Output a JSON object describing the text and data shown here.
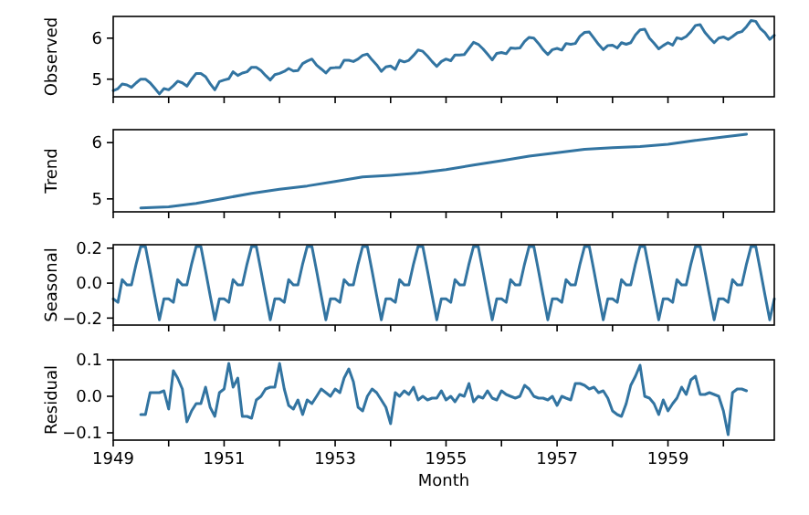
{
  "chart_data": [
    {
      "type": "line",
      "ylabel": "Observed",
      "xlim": [
        "1949-01",
        "1960-12"
      ],
      "ylim": [
        4.57,
        6.53
      ],
      "yticks": [
        {
          "value": 5,
          "label": "5"
        },
        {
          "value": 6,
          "label": "6"
        }
      ],
      "tick_labels": "y",
      "xticks": [
        {
          "value": "1949",
          "label": null
        },
        {
          "value": "1950",
          "label": null
        },
        {
          "value": "1951",
          "label": null
        },
        {
          "value": "1952",
          "label": null
        },
        {
          "value": "1953",
          "label": null
        },
        {
          "value": "1954",
          "label": null
        },
        {
          "value": "1955",
          "label": null
        },
        {
          "value": "1956",
          "label": null
        },
        {
          "value": "1957",
          "label": null
        },
        {
          "value": "1958",
          "label": null
        },
        {
          "value": "1959",
          "label": null
        },
        {
          "value": "1960",
          "label": null
        }
      ],
      "x": [
        "1949-01",
        "1949-02",
        "1949-03",
        "1949-04",
        "1949-05",
        "1949-06",
        "1949-07",
        "1949-08",
        "1949-09",
        "1949-10",
        "1949-11",
        "1949-12",
        "1950-01",
        "1950-02",
        "1950-03",
        "1950-04",
        "1950-05",
        "1950-06",
        "1950-07",
        "1950-08",
        "1950-09",
        "1950-10",
        "1950-11",
        "1950-12",
        "1951-01",
        "1951-02",
        "1951-03",
        "1951-04",
        "1951-05",
        "1951-06",
        "1951-07",
        "1951-08",
        "1951-09",
        "1951-10",
        "1951-11",
        "1951-12",
        "1952-01",
        "1952-02",
        "1952-03",
        "1952-04",
        "1952-05",
        "1952-06",
        "1952-07",
        "1952-08",
        "1952-09",
        "1952-10",
        "1952-11",
        "1952-12",
        "1953-01",
        "1953-02",
        "1953-03",
        "1953-04",
        "1953-05",
        "1953-06",
        "1953-07",
        "1953-08",
        "1953-09",
        "1953-10",
        "1953-11",
        "1953-12",
        "1954-01",
        "1954-02",
        "1954-03",
        "1954-04",
        "1954-05",
        "1954-06",
        "1954-07",
        "1954-08",
        "1954-09",
        "1954-10",
        "1954-11",
        "1954-12",
        "1955-01",
        "1955-02",
        "1955-03",
        "1955-04",
        "1955-05",
        "1955-06",
        "1955-07",
        "1955-08",
        "1955-09",
        "1955-10",
        "1955-11",
        "1955-12",
        "1956-01",
        "1956-02",
        "1956-03",
        "1956-04",
        "1956-05",
        "1956-06",
        "1956-07",
        "1956-08",
        "1956-09",
        "1956-10",
        "1956-11",
        "1956-12",
        "1957-01",
        "1957-02",
        "1957-03",
        "1957-04",
        "1957-05",
        "1957-06",
        "1957-07",
        "1957-08",
        "1957-09",
        "1957-10",
        "1957-11",
        "1957-12",
        "1958-01",
        "1958-02",
        "1958-03",
        "1958-04",
        "1958-05",
        "1958-06",
        "1958-07",
        "1958-08",
        "1958-09",
        "1958-10",
        "1958-11",
        "1958-12",
        "1959-01",
        "1959-02",
        "1959-03",
        "1959-04",
        "1959-05",
        "1959-06",
        "1959-07",
        "1959-08",
        "1959-09",
        "1959-10",
        "1959-11",
        "1959-12",
        "1960-01",
        "1960-02",
        "1960-03",
        "1960-04",
        "1960-05",
        "1960-06",
        "1960-07",
        "1960-08",
        "1960-09",
        "1960-10",
        "1960-11",
        "1960-12"
      ],
      "series": [
        {
          "color": "#3274a1",
          "values": [
            4.72,
            4.77,
            4.88,
            4.86,
            4.8,
            4.91,
            5.0,
            5.0,
            4.91,
            4.78,
            4.64,
            4.77,
            4.74,
            4.84,
            4.95,
            4.91,
            4.83,
            5.0,
            5.14,
            5.14,
            5.06,
            4.89,
            4.74,
            4.94,
            4.98,
            5.01,
            5.18,
            5.09,
            5.15,
            5.18,
            5.29,
            5.29,
            5.21,
            5.09,
            4.98,
            5.11,
            5.14,
            5.19,
            5.26,
            5.2,
            5.21,
            5.38,
            5.44,
            5.49,
            5.34,
            5.25,
            5.15,
            5.27,
            5.28,
            5.28,
            5.46,
            5.46,
            5.43,
            5.49,
            5.58,
            5.61,
            5.47,
            5.35,
            5.19,
            5.3,
            5.32,
            5.24,
            5.46,
            5.42,
            5.46,
            5.58,
            5.71,
            5.68,
            5.56,
            5.43,
            5.31,
            5.43,
            5.49,
            5.45,
            5.59,
            5.59,
            5.6,
            5.75,
            5.9,
            5.85,
            5.74,
            5.61,
            5.47,
            5.63,
            5.65,
            5.62,
            5.76,
            5.75,
            5.76,
            5.92,
            6.02,
            6.0,
            5.87,
            5.72,
            5.6,
            5.72,
            5.75,
            5.71,
            5.87,
            5.85,
            5.87,
            6.05,
            6.14,
            6.15,
            6.0,
            5.85,
            5.72,
            5.82,
            5.83,
            5.76,
            5.89,
            5.85,
            5.89,
            6.08,
            6.2,
            6.22,
            6.0,
            5.88,
            5.74,
            5.82,
            5.89,
            5.83,
            6.01,
            5.98,
            6.04,
            6.16,
            6.31,
            6.33,
            6.14,
            6.01,
            5.89,
            6.0,
            6.03,
            5.97,
            6.04,
            6.13,
            6.16,
            6.28,
            6.43,
            6.41,
            6.23,
            6.13,
            5.97,
            6.07
          ]
        }
      ]
    },
    {
      "type": "line",
      "ylabel": "Trend",
      "xlim": [
        "1949-01",
        "1960-12"
      ],
      "ylim": [
        4.77,
        6.23
      ],
      "yticks": [
        {
          "value": 5,
          "label": "5"
        },
        {
          "value": 6,
          "label": "6"
        }
      ],
      "tick_labels": "y",
      "xticks": [
        {
          "value": "1949",
          "label": null
        },
        {
          "value": "1950",
          "label": null
        },
        {
          "value": "1951",
          "label": null
        },
        {
          "value": "1952",
          "label": null
        },
        {
          "value": "1953",
          "label": null
        },
        {
          "value": "1954",
          "label": null
        },
        {
          "value": "1955",
          "label": null
        },
        {
          "value": "1956",
          "label": null
        },
        {
          "value": "1957",
          "label": null
        },
        {
          "value": "1958",
          "label": null
        },
        {
          "value": "1959",
          "label": null
        },
        {
          "value": "1960",
          "label": null
        }
      ],
      "x": [
        "1949-07",
        "1950-01",
        "1950-07",
        "1951-01",
        "1951-07",
        "1952-01",
        "1952-07",
        "1953-01",
        "1953-07",
        "1954-01",
        "1954-07",
        "1955-01",
        "1955-07",
        "1956-01",
        "1956-07",
        "1957-01",
        "1957-07",
        "1958-01",
        "1958-07",
        "1959-01",
        "1959-07",
        "1960-01",
        "1960-06"
      ],
      "series": [
        {
          "color": "#3274a1",
          "values": [
            4.84,
            4.86,
            4.92,
            5.01,
            5.1,
            5.17,
            5.23,
            5.31,
            5.39,
            5.42,
            5.46,
            5.52,
            5.6,
            5.68,
            5.76,
            5.82,
            5.88,
            5.91,
            5.93,
            5.97,
            6.04,
            6.1,
            6.15
          ]
        }
      ]
    },
    {
      "type": "line",
      "ylabel": "Seasonal",
      "xlim": [
        "1949-01",
        "1960-12"
      ],
      "ylim": [
        -0.24,
        0.22
      ],
      "yticks": [
        {
          "value": -0.2,
          "label": "−0.2"
        },
        {
          "value": 0,
          "label": "0.0"
        },
        {
          "value": 0.2,
          "label": "0.2"
        }
      ],
      "tick_labels": "y",
      "xticks": [
        {
          "value": "1949",
          "label": null
        },
        {
          "value": "1950",
          "label": null
        },
        {
          "value": "1951",
          "label": null
        },
        {
          "value": "1952",
          "label": null
        },
        {
          "value": "1953",
          "label": null
        },
        {
          "value": "1954",
          "label": null
        },
        {
          "value": "1955",
          "label": null
        },
        {
          "value": "1956",
          "label": null
        },
        {
          "value": "1957",
          "label": null
        },
        {
          "value": "1958",
          "label": null
        },
        {
          "value": "1959",
          "label": null
        },
        {
          "value": "1960",
          "label": null
        }
      ],
      "x": [
        "1949-01",
        "1949-02",
        "1949-03",
        "1949-04",
        "1949-05",
        "1949-06",
        "1949-07",
        "1949-08",
        "1949-09",
        "1949-10",
        "1949-11",
        "1949-12",
        "1950-01",
        "1950-02",
        "1950-03",
        "1950-04",
        "1950-05",
        "1950-06",
        "1950-07",
        "1950-08",
        "1950-09",
        "1950-10",
        "1950-11",
        "1950-12",
        "1951-01",
        "1951-02",
        "1951-03",
        "1951-04",
        "1951-05",
        "1951-06",
        "1951-07",
        "1951-08",
        "1951-09",
        "1951-10",
        "1951-11",
        "1951-12",
        "1952-01",
        "1952-02",
        "1952-03",
        "1952-04",
        "1952-05",
        "1952-06",
        "1952-07",
        "1952-08",
        "1952-09",
        "1952-10",
        "1952-11",
        "1952-12",
        "1953-01",
        "1953-02",
        "1953-03",
        "1953-04",
        "1953-05",
        "1953-06",
        "1953-07",
        "1953-08",
        "1953-09",
        "1953-10",
        "1953-11",
        "1953-12",
        "1954-01",
        "1954-02",
        "1954-03",
        "1954-04",
        "1954-05",
        "1954-06",
        "1954-07",
        "1954-08",
        "1954-09",
        "1954-10",
        "1954-11",
        "1954-12",
        "1955-01",
        "1955-02",
        "1955-03",
        "1955-04",
        "1955-05",
        "1955-06",
        "1955-07",
        "1955-08",
        "1955-09",
        "1955-10",
        "1955-11",
        "1955-12",
        "1956-01",
        "1956-02",
        "1956-03",
        "1956-04",
        "1956-05",
        "1956-06",
        "1956-07",
        "1956-08",
        "1956-09",
        "1956-10",
        "1956-11",
        "1956-12",
        "1957-01",
        "1957-02",
        "1957-03",
        "1957-04",
        "1957-05",
        "1957-06",
        "1957-07",
        "1957-08",
        "1957-09",
        "1957-10",
        "1957-11",
        "1957-12",
        "1958-01",
        "1958-02",
        "1958-03",
        "1958-04",
        "1958-05",
        "1958-06",
        "1958-07",
        "1958-08",
        "1958-09",
        "1958-10",
        "1958-11",
        "1958-12",
        "1959-01",
        "1959-02",
        "1959-03",
        "1959-04",
        "1959-05",
        "1959-06",
        "1959-07",
        "1959-08",
        "1959-09",
        "1959-10",
        "1959-11",
        "1959-12",
        "1960-01",
        "1960-02",
        "1960-03",
        "1960-04",
        "1960-05",
        "1960-06",
        "1960-07",
        "1960-08",
        "1960-09",
        "1960-10",
        "1960-11",
        "1960-12"
      ],
      "series": [
        {
          "color": "#3274a1",
          "values": [
            -0.09,
            -0.11,
            0.02,
            -0.01,
            -0.01,
            0.11,
            0.21,
            0.21,
            0.07,
            -0.07,
            -0.21,
            -0.09,
            -0.09,
            -0.11,
            0.02,
            -0.01,
            -0.01,
            0.11,
            0.21,
            0.21,
            0.07,
            -0.07,
            -0.21,
            -0.09,
            -0.09,
            -0.11,
            0.02,
            -0.01,
            -0.01,
            0.11,
            0.21,
            0.21,
            0.07,
            -0.07,
            -0.21,
            -0.09,
            -0.09,
            -0.11,
            0.02,
            -0.01,
            -0.01,
            0.11,
            0.21,
            0.21,
            0.07,
            -0.07,
            -0.21,
            -0.09,
            -0.09,
            -0.11,
            0.02,
            -0.01,
            -0.01,
            0.11,
            0.21,
            0.21,
            0.07,
            -0.07,
            -0.21,
            -0.09,
            -0.09,
            -0.11,
            0.02,
            -0.01,
            -0.01,
            0.11,
            0.21,
            0.21,
            0.07,
            -0.07,
            -0.21,
            -0.09,
            -0.09,
            -0.11,
            0.02,
            -0.01,
            -0.01,
            0.11,
            0.21,
            0.21,
            0.07,
            -0.07,
            -0.21,
            -0.09,
            -0.09,
            -0.11,
            0.02,
            -0.01,
            -0.01,
            0.11,
            0.21,
            0.21,
            0.07,
            -0.07,
            -0.21,
            -0.09,
            -0.09,
            -0.11,
            0.02,
            -0.01,
            -0.01,
            0.11,
            0.21,
            0.21,
            0.07,
            -0.07,
            -0.21,
            -0.09,
            -0.09,
            -0.11,
            0.02,
            -0.01,
            -0.01,
            0.11,
            0.21,
            0.21,
            0.07,
            -0.07,
            -0.21,
            -0.09,
            -0.09,
            -0.11,
            0.02,
            -0.01,
            -0.01,
            0.11,
            0.21,
            0.21,
            0.07,
            -0.07,
            -0.21,
            -0.09,
            -0.09,
            -0.11,
            0.02,
            -0.01,
            -0.01,
            0.11,
            0.21,
            0.21,
            0.07,
            -0.07,
            -0.21,
            -0.09
          ]
        }
      ]
    },
    {
      "type": "line",
      "ylabel": "Residual",
      "xlabel": "Month",
      "xlim": [
        "1949-01",
        "1960-12"
      ],
      "ylim": [
        -0.12,
        0.1
      ],
      "yticks": [
        {
          "value": -0.1,
          "label": "−0.1"
        },
        {
          "value": 0,
          "label": "0.0"
        },
        {
          "value": 0.1,
          "label": "0.1"
        }
      ],
      "xticks": [
        {
          "value": "1949",
          "label": "1949"
        },
        {
          "value": "1950",
          "label": null
        },
        {
          "value": "1951",
          "label": "1951"
        },
        {
          "value": "1952",
          "label": null
        },
        {
          "value": "1953",
          "label": "1953"
        },
        {
          "value": "1954",
          "label": null
        },
        {
          "value": "1955",
          "label": "1955"
        },
        {
          "value": "1956",
          "label": null
        },
        {
          "value": "1957",
          "label": "1957"
        },
        {
          "value": "1958",
          "label": null
        },
        {
          "value": "1959",
          "label": "1959"
        },
        {
          "value": "1960",
          "label": null
        }
      ],
      "x": [
        "1949-07",
        "1949-08",
        "1949-09",
        "1949-10",
        "1949-11",
        "1949-12",
        "1950-01",
        "1950-02",
        "1950-03",
        "1950-04",
        "1950-05",
        "1950-06",
        "1950-07",
        "1950-08",
        "1950-09",
        "1950-10",
        "1950-11",
        "1950-12",
        "1951-01",
        "1951-02",
        "1951-03",
        "1951-04",
        "1951-05",
        "1951-06",
        "1951-07",
        "1951-08",
        "1951-09",
        "1951-10",
        "1951-11",
        "1951-12",
        "1952-01",
        "1952-02",
        "1952-03",
        "1952-04",
        "1952-05",
        "1952-06",
        "1952-07",
        "1952-08",
        "1952-09",
        "1952-10",
        "1952-11",
        "1952-12",
        "1953-01",
        "1953-02",
        "1953-03",
        "1953-04",
        "1953-05",
        "1953-06",
        "1953-07",
        "1953-08",
        "1953-09",
        "1953-10",
        "1953-11",
        "1953-12",
        "1954-01",
        "1954-02",
        "1954-03",
        "1954-04",
        "1954-05",
        "1954-06",
        "1954-07",
        "1954-08",
        "1954-09",
        "1954-10",
        "1954-11",
        "1954-12",
        "1955-01",
        "1955-02",
        "1955-03",
        "1955-04",
        "1955-05",
        "1955-06",
        "1955-07",
        "1955-08",
        "1955-09",
        "1955-10",
        "1955-11",
        "1955-12",
        "1956-01",
        "1956-02",
        "1956-03",
        "1956-04",
        "1956-05",
        "1956-06",
        "1956-07",
        "1956-08",
        "1956-09",
        "1956-10",
        "1956-11",
        "1956-12",
        "1957-01",
        "1957-02",
        "1957-03",
        "1957-04",
        "1957-05",
        "1957-06",
        "1957-07",
        "1957-08",
        "1957-09",
        "1957-10",
        "1957-11",
        "1957-12",
        "1958-01",
        "1958-02",
        "1958-03",
        "1958-04",
        "1958-05",
        "1958-06",
        "1958-07",
        "1958-08",
        "1958-09",
        "1958-10",
        "1958-11",
        "1958-12",
        "1959-01",
        "1959-02",
        "1959-03",
        "1959-04",
        "1959-05",
        "1959-06",
        "1959-07",
        "1959-08",
        "1959-09",
        "1959-10",
        "1959-11",
        "1959-12",
        "1960-01",
        "1960-02",
        "1960-03",
        "1960-04",
        "1960-05",
        "1960-06"
      ],
      "series": [
        {
          "color": "#3274a1",
          "values": [
            -0.05,
            -0.05,
            0.01,
            0.01,
            0.01,
            0.015,
            -0.035,
            0.07,
            0.05,
            0.02,
            -0.07,
            -0.04,
            -0.02,
            -0.02,
            0.025,
            -0.03,
            -0.055,
            0.01,
            0.02,
            0.09,
            0.025,
            0.05,
            -0.055,
            -0.055,
            -0.06,
            -0.01,
            0.0,
            0.02,
            0.025,
            0.025,
            0.09,
            0.02,
            -0.025,
            -0.035,
            -0.01,
            -0.05,
            -0.01,
            -0.02,
            0.0,
            0.02,
            0.01,
            0.0,
            0.02,
            0.01,
            0.05,
            0.075,
            0.04,
            -0.03,
            -0.04,
            0.0,
            0.02,
            0.01,
            -0.01,
            -0.03,
            -0.075,
            0.01,
            0.0,
            0.015,
            0.005,
            0.025,
            -0.01,
            0.0,
            -0.01,
            -0.005,
            -0.005,
            0.015,
            -0.01,
            0.0,
            -0.015,
            0.005,
            0.0,
            0.035,
            -0.015,
            0.0,
            -0.005,
            0.015,
            -0.005,
            -0.01,
            0.015,
            0.005,
            0.0,
            -0.005,
            0.0,
            0.03,
            0.02,
            0.0,
            -0.005,
            -0.005,
            -0.01,
            0.0,
            -0.025,
            0.0,
            -0.005,
            -0.01,
            0.035,
            0.035,
            0.03,
            0.02,
            0.025,
            0.01,
            0.015,
            -0.005,
            -0.04,
            -0.05,
            -0.055,
            -0.02,
            0.03,
            0.055,
            0.085,
            0.0,
            -0.005,
            -0.02,
            -0.05,
            -0.01,
            -0.04,
            -0.02,
            -0.005,
            0.025,
            0.005,
            0.045,
            0.055,
            0.005,
            0.005,
            0.01,
            0.005,
            0.0,
            -0.04,
            -0.105,
            0.01,
            0.02,
            0.02,
            0.015
          ]
        }
      ]
    }
  ]
}
